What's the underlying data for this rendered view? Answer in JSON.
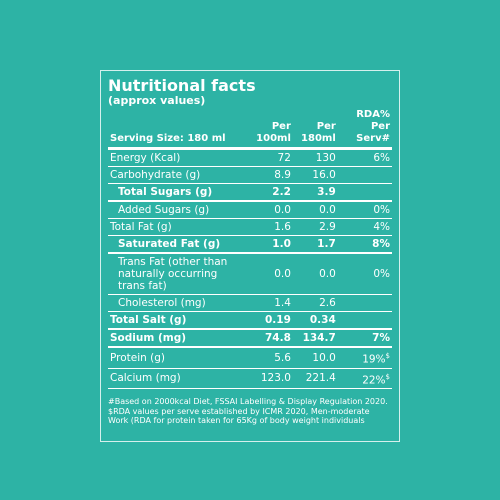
{
  "header": {
    "title": "Nutritional facts",
    "subtitle": "(approx values)",
    "serving": "Serving Size: 180 ml"
  },
  "table": {
    "columns": [
      "Per 100ml",
      "Per 180ml",
      "RDA% Per Serv#"
    ],
    "rows": [
      {
        "label": "Energy (Kcal)",
        "per_100ml": "72",
        "per_180ml": "130",
        "rda": "6%"
      },
      {
        "label": "Carbohydrate (g)",
        "per_100ml": "8.9",
        "per_180ml": "16.0",
        "rda": null
      },
      {
        "label": "Total Sugars (g)",
        "per_100ml": "2.2",
        "per_180ml": "3.9",
        "rda": null,
        "indent": true,
        "bold": true
      },
      {
        "label": "Added Sugars (g)",
        "per_100ml": "0.0",
        "per_180ml": "0.0",
        "rda": "0%",
        "indent": true
      },
      {
        "label": "Total Fat (g)",
        "per_100ml": "1.6",
        "per_180ml": "2.9",
        "rda": "4%"
      },
      {
        "label": "Saturated Fat (g)",
        "per_100ml": "1.0",
        "per_180ml": "1.7",
        "rda": "8%",
        "indent": true,
        "bold": true
      },
      {
        "label": "Trans Fat (other than naturally occurring trans fat)",
        "per_100ml": "0.0",
        "per_180ml": "0.0",
        "rda": "0%",
        "indent": true
      },
      {
        "label": "Cholesterol (mg)",
        "per_100ml": "1.4",
        "per_180ml": "2.6",
        "rda": null,
        "indent": true
      },
      {
        "label": "Total Salt (g)",
        "per_100ml": "0.19",
        "per_180ml": "0.34",
        "rda": null,
        "bold": true
      },
      {
        "label": "Sodium (mg)",
        "per_100ml": "74.8",
        "per_180ml": "134.7",
        "rda": "7%",
        "bold": true
      },
      {
        "label": "Protein (g)",
        "per_100ml": "5.6",
        "per_180ml": "10.0",
        "rda": "19%",
        "rda_note": "$"
      },
      {
        "label": "Calcium (mg)",
        "per_100ml": "123.0",
        "per_180ml": "221.4",
        "rda": "22%",
        "rda_note": "$"
      }
    ]
  },
  "footnote": "#Based on 2000kcal Diet, FSSAI Labelling & Display Regulation 2020. $RDA values per serve established by ICMR 2020, Men-moderate Work (RDA for protein taken for 65Kg of body weight individuals"
}
